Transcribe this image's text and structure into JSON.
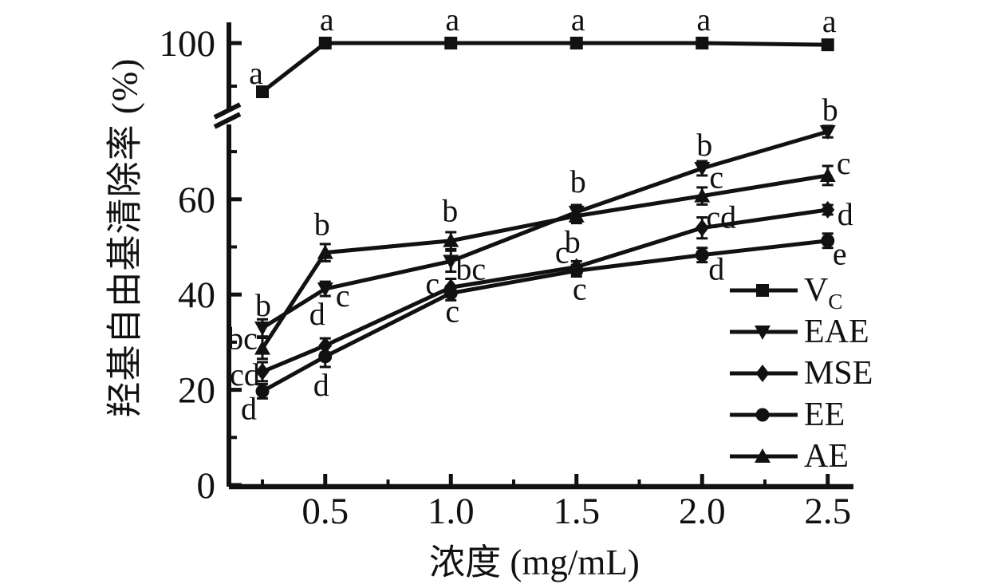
{
  "chart_data": {
    "type": "line",
    "title": "",
    "xlabel": "浓度 (mg/mL)",
    "ylabel": "羟基自由基清除率 (%)",
    "x": [
      0.25,
      0.5,
      1.0,
      1.5,
      2.0,
      2.5
    ],
    "x_ticks_major": [
      0.5,
      1.0,
      1.5,
      2.0,
      2.5
    ],
    "x_tick_labels": [
      "0.5",
      "1.0",
      "1.5",
      "2.0",
      "2.5"
    ],
    "x_ticks_minor": [
      0.25,
      0.75,
      1.25,
      1.75,
      2.25
    ],
    "y_ticks_major": [
      0,
      20,
      40,
      60,
      100
    ],
    "y_tick_labels": [
      "0",
      "20",
      "40",
      "60",
      "100"
    ],
    "y_ticks_minor": [
      10,
      30,
      50,
      70,
      90
    ],
    "y_axis_break": [
      75,
      85
    ],
    "ylim": [
      0,
      105
    ],
    "grid": false,
    "legend_position": "inside-right",
    "colors": {
      "ink": "#111111",
      "background": "#ffffff"
    },
    "series": [
      {
        "name": "VC",
        "legend_text": "V",
        "legend_subscript": "C",
        "marker": "square",
        "values": [
          88.7,
          100,
          100,
          100,
          100,
          99.6
        ],
        "errors": [
          1.0,
          0.4,
          0.4,
          0.4,
          0.4,
          0.5
        ],
        "point_labels": [
          "a",
          "a",
          "a",
          "a",
          "a",
          "a"
        ],
        "label_offsets": [
          [
            -8,
            -10
          ],
          [
            2,
            -16
          ],
          [
            2,
            -16
          ],
          [
            2,
            -16
          ],
          [
            2,
            -16
          ],
          [
            2,
            -16
          ]
        ]
      },
      {
        "name": "EAE",
        "legend_text": "EAE",
        "legend_subscript": "",
        "marker": "triangle-down",
        "values": [
          33,
          41.2,
          47,
          57.3,
          66.5,
          74.2
        ],
        "errors": [
          1.8,
          1.5,
          2.2,
          1.5,
          1.5,
          1.2
        ],
        "point_labels": [
          "b",
          "c",
          "bc",
          "b",
          "b",
          "b"
        ],
        "label_offsets": [
          [
            1,
            -15
          ],
          [
            22,
            22
          ],
          [
            25,
            23
          ],
          [
            2,
            -25
          ],
          [
            3,
            -16
          ],
          [
            3,
            -14
          ]
        ]
      },
      {
        "name": "MSE",
        "legend_text": "MSE",
        "legend_subscript": "",
        "marker": "diamond",
        "values": [
          23.8,
          29.3,
          41.5,
          45.8,
          54,
          57.8
        ],
        "errors": [
          2.0,
          1.5,
          1.8,
          1.2,
          2.2,
          1.0
        ],
        "point_labels": [
          "cd",
          "d",
          "c",
          "c",
          "cd",
          "d"
        ],
        "label_offsets": [
          [
            -22,
            17
          ],
          [
            -10,
            -26
          ],
          [
            -23,
            9
          ],
          [
            -18,
            -5
          ],
          [
            24,
            0
          ],
          [
            22,
            19
          ]
        ]
      },
      {
        "name": "EE",
        "legend_text": "EE",
        "legend_subscript": "",
        "marker": "circle",
        "values": [
          19.7,
          27,
          40.3,
          45,
          48.3,
          51.3
        ],
        "errors": [
          1.5,
          2.2,
          1.5,
          1.2,
          1.5,
          1.5
        ],
        "point_labels": [
          "d",
          "d",
          "c",
          "c",
          "d",
          "e"
        ],
        "label_offsets": [
          [
            -17,
            35
          ],
          [
            -5,
            49
          ],
          [
            2,
            36
          ],
          [
            4,
            36
          ],
          [
            18,
            31
          ],
          [
            15,
            30
          ]
        ]
      },
      {
        "name": "AE",
        "legend_text": "AE",
        "legend_subscript": "",
        "marker": "triangle-up",
        "values": [
          28.7,
          48.8,
          51.3,
          56.5,
          60.7,
          65
        ],
        "errors": [
          2.2,
          1.8,
          1.8,
          1.5,
          1.8,
          2.0
        ],
        "point_labels": [
          "bc",
          "b",
          "b",
          "b",
          "c",
          "c"
        ],
        "label_offsets": [
          [
            -25,
            1
          ],
          [
            -4,
            -22
          ],
          [
            -1,
            -24
          ],
          [
            -5,
            46
          ],
          [
            18,
            -10
          ],
          [
            20,
            -2
          ]
        ]
      }
    ]
  }
}
